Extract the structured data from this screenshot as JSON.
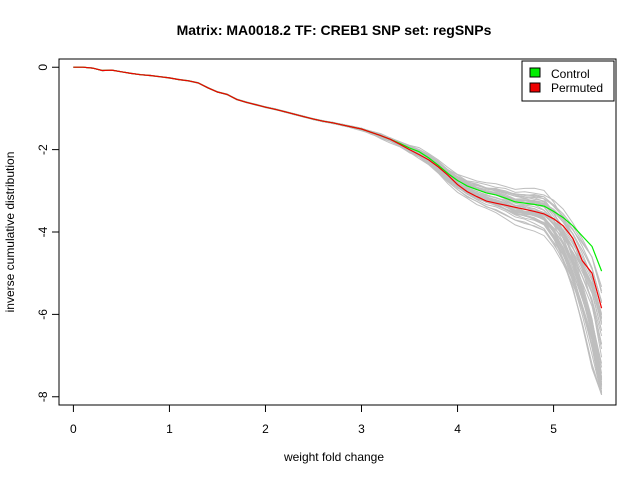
{
  "chart_data": {
    "type": "line",
    "title": "Matrix: MA0018.2 TF: CREB1 SNP set: regSNPs",
    "xlabel": "weight fold change",
    "ylabel": "inverse cumulative distribution",
    "xlim": [
      -0.15,
      5.65
    ],
    "ylim": [
      -8.2,
      0.2
    ],
    "x_ticks": [
      0,
      1,
      2,
      3,
      4,
      5
    ],
    "y_ticks": [
      0,
      -2,
      -4,
      -6,
      -8
    ],
    "x": [
      0,
      0.1,
      0.2,
      0.3,
      0.4,
      0.5,
      0.6,
      0.7,
      0.8,
      0.9,
      1.0,
      1.1,
      1.2,
      1.3,
      1.4,
      1.5,
      1.6,
      1.7,
      1.8,
      1.9,
      2.0,
      2.1,
      2.2,
      2.3,
      2.4,
      2.5,
      2.6,
      2.7,
      2.8,
      2.9,
      3.0,
      3.1,
      3.2,
      3.3,
      3.4,
      3.5,
      3.6,
      3.7,
      3.8,
      3.9,
      4.0,
      4.1,
      4.2,
      4.3,
      4.4,
      4.5,
      4.6,
      4.7,
      4.8,
      4.9,
      5.0,
      5.1,
      5.2,
      5.3,
      5.4,
      5.5
    ],
    "series": [
      {
        "name": "Control",
        "color": "#00ee00",
        "values": [
          0,
          0,
          -0.02,
          -0.08,
          -0.07,
          -0.11,
          -0.15,
          -0.18,
          -0.2,
          -0.23,
          -0.26,
          -0.3,
          -0.33,
          -0.38,
          -0.5,
          -0.6,
          -0.66,
          -0.78,
          -0.85,
          -0.91,
          -0.97,
          -1.02,
          -1.08,
          -1.14,
          -1.2,
          -1.26,
          -1.31,
          -1.35,
          -1.4,
          -1.45,
          -1.5,
          -1.58,
          -1.66,
          -1.75,
          -1.85,
          -1.96,
          -2.05,
          -2.2,
          -2.38,
          -2.58,
          -2.75,
          -2.88,
          -2.97,
          -3.05,
          -3.1,
          -3.18,
          -3.27,
          -3.3,
          -3.33,
          -3.37,
          -3.5,
          -3.65,
          -3.85,
          -4.1,
          -4.35,
          -4.95
        ]
      },
      {
        "name": "Permuted",
        "color": "#ee0000",
        "values": [
          0,
          0,
          -0.02,
          -0.08,
          -0.07,
          -0.11,
          -0.15,
          -0.18,
          -0.2,
          -0.23,
          -0.26,
          -0.3,
          -0.33,
          -0.38,
          -0.5,
          -0.6,
          -0.66,
          -0.78,
          -0.85,
          -0.91,
          -0.97,
          -1.02,
          -1.08,
          -1.14,
          -1.2,
          -1.26,
          -1.31,
          -1.35,
          -1.4,
          -1.45,
          -1.5,
          -1.58,
          -1.66,
          -1.75,
          -1.87,
          -2.0,
          -2.12,
          -2.25,
          -2.42,
          -2.62,
          -2.85,
          -3.02,
          -3.14,
          -3.25,
          -3.3,
          -3.35,
          -3.4,
          -3.45,
          -3.5,
          -3.56,
          -3.68,
          -3.85,
          -4.15,
          -4.7,
          -5.0,
          -5.85
        ]
      }
    ],
    "background_lines": {
      "color": "#bebebe",
      "count": 45,
      "description_values_in_units": "permutation curves spreading below x=3 and widening to between about -4 and -8 near x=5.5"
    },
    "legend": {
      "position": "top-right",
      "entries": [
        {
          "label": "Control",
          "color": "#00ee00"
        },
        {
          "label": "Permuted",
          "color": "#ee0000"
        }
      ]
    },
    "grid": false
  }
}
